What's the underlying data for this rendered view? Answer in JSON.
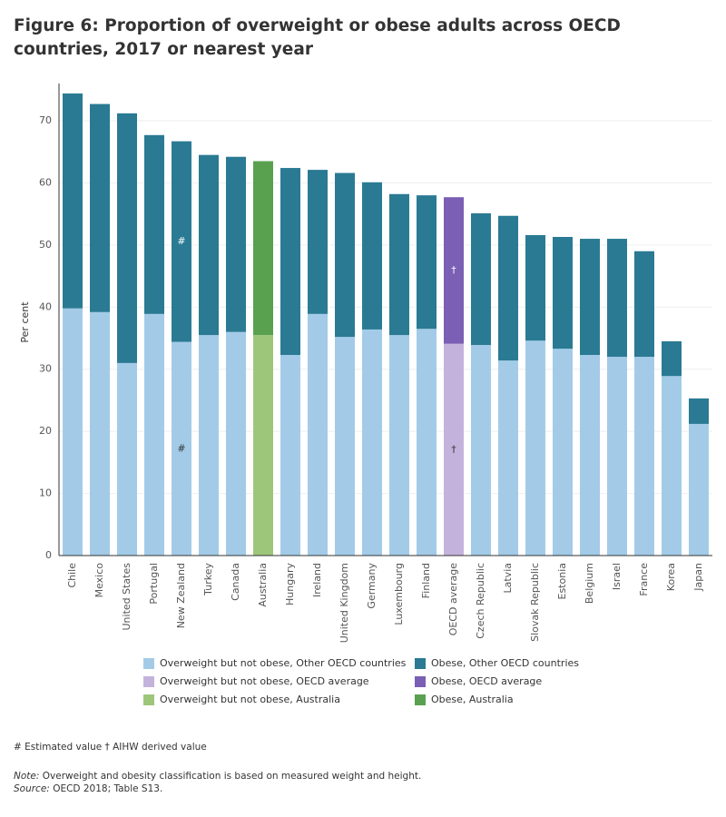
{
  "chart_data": {
    "type": "stacked-bar",
    "title": "Figure 6: Proportion of overweight or obese adults across OECD countries, 2017 or nearest year",
    "y_label": "Per cent",
    "categories": [
      "Chile",
      "Mexico",
      "United States",
      "Portugal",
      "New Zealand",
      "Turkey",
      "Canada",
      "Australia",
      "Hungary",
      "Ireland",
      "United Kingdom",
      "Germany",
      "Luxembourg",
      "Finland",
      "OECD average",
      "Czech Republic",
      "Latvia",
      "Slovak Republic",
      "Estonia",
      "Belgium",
      "Israel",
      "France",
      "Korea",
      "Japan"
    ],
    "series": [
      {
        "name": "Overweight but not obese, Other OECD countries",
        "color": "#a3cbe8",
        "values": [
          39.8,
          39.2,
          31.0,
          38.9,
          34.4,
          35.5,
          36.0,
          null,
          32.3,
          38.9,
          35.2,
          36.4,
          35.5,
          36.5,
          null,
          33.9,
          31.4,
          34.6,
          33.3,
          32.3,
          32.0,
          32.0,
          28.9,
          21.2
        ]
      },
      {
        "name": "Overweight but not obese, OECD average",
        "color": "#c3b3dc",
        "values": [
          null,
          null,
          null,
          null,
          null,
          null,
          null,
          null,
          null,
          null,
          null,
          null,
          null,
          null,
          34.1,
          null,
          null,
          null,
          null,
          null,
          null,
          null,
          null,
          null
        ]
      },
      {
        "name": "Overweight but not obese, Australia",
        "color": "#9ec67a",
        "values": [
          null,
          null,
          null,
          null,
          null,
          null,
          null,
          35.5,
          null,
          null,
          null,
          null,
          null,
          null,
          null,
          null,
          null,
          null,
          null,
          null,
          null,
          null,
          null,
          null
        ]
      },
      {
        "name": "Obese, Other OECD countries",
        "color": "#2a7a93",
        "values": [
          34.6,
          33.5,
          40.2,
          28.8,
          32.3,
          29.0,
          28.2,
          null,
          30.1,
          23.2,
          26.4,
          23.7,
          22.7,
          21.5,
          null,
          21.2,
          23.3,
          17.0,
          18.0,
          18.7,
          19.0,
          17.0,
          5.6,
          4.1
        ]
      },
      {
        "name": "Obese, OECD average",
        "color": "#7a5fb4",
        "values": [
          null,
          null,
          null,
          null,
          null,
          null,
          null,
          null,
          null,
          null,
          null,
          null,
          null,
          null,
          23.6,
          null,
          null,
          null,
          null,
          null,
          null,
          null,
          null,
          null
        ]
      },
      {
        "name": "Obese, Australia",
        "color": "#59a14f",
        "values": [
          null,
          null,
          null,
          null,
          null,
          null,
          null,
          28.0,
          null,
          null,
          null,
          null,
          null,
          null,
          null,
          null,
          null,
          null,
          null,
          null,
          null,
          null,
          null,
          null
        ]
      }
    ],
    "annotations": [
      {
        "category": "New Zealand",
        "text": "#"
      },
      {
        "category": "OECD average",
        "text": "†"
      }
    ],
    "ylim": [
      0,
      76
    ],
    "yticks": [
      0,
      10,
      20,
      30,
      40,
      50,
      60,
      70
    ],
    "grid": true,
    "footnote": "# Estimated value   † AIHW derived value",
    "note_label": "Note:",
    "note": "Overweight and obesity classification is based on measured weight and height.",
    "source_label": "Source:",
    "source": "OECD 2018; Table S13."
  }
}
